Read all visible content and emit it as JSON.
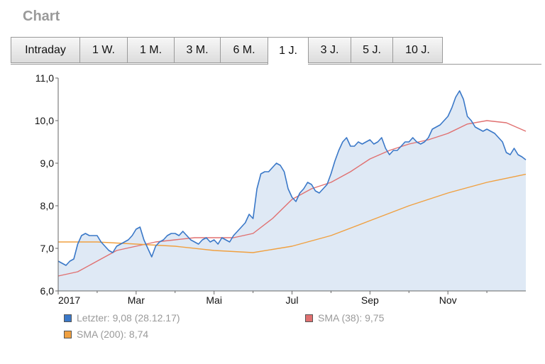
{
  "header": {
    "title": "Chart"
  },
  "tabs": [
    {
      "label": "Intraday",
      "active": false
    },
    {
      "label": "1 W.",
      "active": false
    },
    {
      "label": "1 M.",
      "active": false
    },
    {
      "label": "3 M.",
      "active": false
    },
    {
      "label": "6 M.",
      "active": false
    },
    {
      "label": "1 J.",
      "active": true
    },
    {
      "label": "3 J.",
      "active": false
    },
    {
      "label": "5 J.",
      "active": false
    },
    {
      "label": "10 J.",
      "active": false
    }
  ],
  "legend": [
    {
      "label": "Letzter: 9,08 (28.12.17)",
      "color": "#3a78c8"
    },
    {
      "label": "SMA (38): 9,75",
      "color": "#e07070"
    },
    {
      "label": "SMA (200): 8,74",
      "color": "#f0a040"
    }
  ],
  "chart_data": {
    "type": "line",
    "ylim": [
      6.0,
      11.0
    ],
    "yticks": [
      "6,0",
      "7,0",
      "8,0",
      "9,0",
      "10,0",
      "11,0"
    ],
    "xlim": [
      0,
      12
    ],
    "xticks": [
      {
        "pos": 0,
        "label": "2017"
      },
      {
        "pos": 2,
        "label": "Mar"
      },
      {
        "pos": 4,
        "label": "Mai"
      },
      {
        "pos": 6,
        "label": "Jul"
      },
      {
        "pos": 8,
        "label": "Sep"
      },
      {
        "pos": 10,
        "label": "Nov"
      }
    ],
    "grid": false,
    "series": [
      {
        "name": "Letzter",
        "color": "#3a78c8",
        "fill": "#dfe9f5",
        "points": [
          [
            0.0,
            6.7
          ],
          [
            0.1,
            6.65
          ],
          [
            0.2,
            6.6
          ],
          [
            0.3,
            6.7
          ],
          [
            0.4,
            6.75
          ],
          [
            0.5,
            7.1
          ],
          [
            0.6,
            7.3
          ],
          [
            0.7,
            7.35
          ],
          [
            0.8,
            7.3
          ],
          [
            0.9,
            7.3
          ],
          [
            1.0,
            7.3
          ],
          [
            1.1,
            7.15
          ],
          [
            1.2,
            7.05
          ],
          [
            1.3,
            6.95
          ],
          [
            1.4,
            6.9
          ],
          [
            1.5,
            7.05
          ],
          [
            1.6,
            7.1
          ],
          [
            1.7,
            7.15
          ],
          [
            1.8,
            7.2
          ],
          [
            1.9,
            7.3
          ],
          [
            2.0,
            7.45
          ],
          [
            2.1,
            7.5
          ],
          [
            2.2,
            7.2
          ],
          [
            2.3,
            7.0
          ],
          [
            2.4,
            6.8
          ],
          [
            2.5,
            7.05
          ],
          [
            2.6,
            7.15
          ],
          [
            2.7,
            7.2
          ],
          [
            2.8,
            7.3
          ],
          [
            2.9,
            7.35
          ],
          [
            3.0,
            7.35
          ],
          [
            3.1,
            7.3
          ],
          [
            3.2,
            7.4
          ],
          [
            3.3,
            7.3
          ],
          [
            3.4,
            7.2
          ],
          [
            3.5,
            7.15
          ],
          [
            3.6,
            7.1
          ],
          [
            3.7,
            7.2
          ],
          [
            3.8,
            7.25
          ],
          [
            3.9,
            7.15
          ],
          [
            4.0,
            7.2
          ],
          [
            4.1,
            7.1
          ],
          [
            4.2,
            7.25
          ],
          [
            4.3,
            7.2
          ],
          [
            4.4,
            7.15
          ],
          [
            4.5,
            7.3
          ],
          [
            4.6,
            7.4
          ],
          [
            4.7,
            7.5
          ],
          [
            4.8,
            7.6
          ],
          [
            4.9,
            7.8
          ],
          [
            5.0,
            7.7
          ],
          [
            5.1,
            8.4
          ],
          [
            5.2,
            8.75
          ],
          [
            5.3,
            8.8
          ],
          [
            5.4,
            8.8
          ],
          [
            5.5,
            8.9
          ],
          [
            5.6,
            9.0
          ],
          [
            5.7,
            8.95
          ],
          [
            5.8,
            8.8
          ],
          [
            5.9,
            8.4
          ],
          [
            6.0,
            8.2
          ],
          [
            6.1,
            8.1
          ],
          [
            6.2,
            8.3
          ],
          [
            6.3,
            8.4
          ],
          [
            6.4,
            8.55
          ],
          [
            6.5,
            8.5
          ],
          [
            6.6,
            8.35
          ],
          [
            6.7,
            8.3
          ],
          [
            6.8,
            8.4
          ],
          [
            6.9,
            8.5
          ],
          [
            7.0,
            8.75
          ],
          [
            7.1,
            9.05
          ],
          [
            7.2,
            9.3
          ],
          [
            7.3,
            9.5
          ],
          [
            7.4,
            9.6
          ],
          [
            7.5,
            9.4
          ],
          [
            7.6,
            9.4
          ],
          [
            7.7,
            9.5
          ],
          [
            7.8,
            9.45
          ],
          [
            7.9,
            9.5
          ],
          [
            8.0,
            9.55
          ],
          [
            8.1,
            9.45
          ],
          [
            8.2,
            9.5
          ],
          [
            8.3,
            9.6
          ],
          [
            8.4,
            9.35
          ],
          [
            8.5,
            9.2
          ],
          [
            8.6,
            9.3
          ],
          [
            8.7,
            9.3
          ],
          [
            8.8,
            9.4
          ],
          [
            8.9,
            9.5
          ],
          [
            9.0,
            9.5
          ],
          [
            9.1,
            9.6
          ],
          [
            9.2,
            9.5
          ],
          [
            9.3,
            9.45
          ],
          [
            9.4,
            9.5
          ],
          [
            9.5,
            9.6
          ],
          [
            9.6,
            9.8
          ],
          [
            9.7,
            9.85
          ],
          [
            9.8,
            9.9
          ],
          [
            9.9,
            10.0
          ],
          [
            10.0,
            10.1
          ],
          [
            10.1,
            10.3
          ],
          [
            10.2,
            10.55
          ],
          [
            10.3,
            10.7
          ],
          [
            10.4,
            10.5
          ],
          [
            10.5,
            10.1
          ],
          [
            10.6,
            10.0
          ],
          [
            10.7,
            9.85
          ],
          [
            10.8,
            9.8
          ],
          [
            10.9,
            9.75
          ],
          [
            11.0,
            9.8
          ],
          [
            11.1,
            9.75
          ],
          [
            11.2,
            9.7
          ],
          [
            11.3,
            9.6
          ],
          [
            11.4,
            9.5
          ],
          [
            11.5,
            9.25
          ],
          [
            11.6,
            9.2
          ],
          [
            11.7,
            9.35
          ],
          [
            11.8,
            9.2
          ],
          [
            11.9,
            9.15
          ],
          [
            12.0,
            9.08
          ]
        ]
      },
      {
        "name": "SMA (38)",
        "color": "#e07070",
        "points": [
          [
            0.0,
            6.35
          ],
          [
            0.5,
            6.45
          ],
          [
            1.0,
            6.7
          ],
          [
            1.5,
            6.95
          ],
          [
            2.0,
            7.05
          ],
          [
            2.5,
            7.15
          ],
          [
            3.0,
            7.2
          ],
          [
            3.5,
            7.25
          ],
          [
            4.0,
            7.25
          ],
          [
            4.5,
            7.25
          ],
          [
            5.0,
            7.35
          ],
          [
            5.5,
            7.7
          ],
          [
            6.0,
            8.15
          ],
          [
            6.5,
            8.4
          ],
          [
            7.0,
            8.55
          ],
          [
            7.5,
            8.8
          ],
          [
            8.0,
            9.1
          ],
          [
            8.5,
            9.3
          ],
          [
            9.0,
            9.45
          ],
          [
            9.5,
            9.55
          ],
          [
            10.0,
            9.7
          ],
          [
            10.5,
            9.92
          ],
          [
            11.0,
            10.0
          ],
          [
            11.5,
            9.95
          ],
          [
            12.0,
            9.75
          ]
        ]
      },
      {
        "name": "SMA (200)",
        "color": "#f0a040",
        "points": [
          [
            0.0,
            7.15
          ],
          [
            1.0,
            7.15
          ],
          [
            2.0,
            7.1
          ],
          [
            3.0,
            7.05
          ],
          [
            4.0,
            6.95
          ],
          [
            5.0,
            6.9
          ],
          [
            6.0,
            7.05
          ],
          [
            7.0,
            7.3
          ],
          [
            8.0,
            7.65
          ],
          [
            9.0,
            8.0
          ],
          [
            10.0,
            8.3
          ],
          [
            11.0,
            8.55
          ],
          [
            12.0,
            8.74
          ]
        ]
      }
    ]
  }
}
